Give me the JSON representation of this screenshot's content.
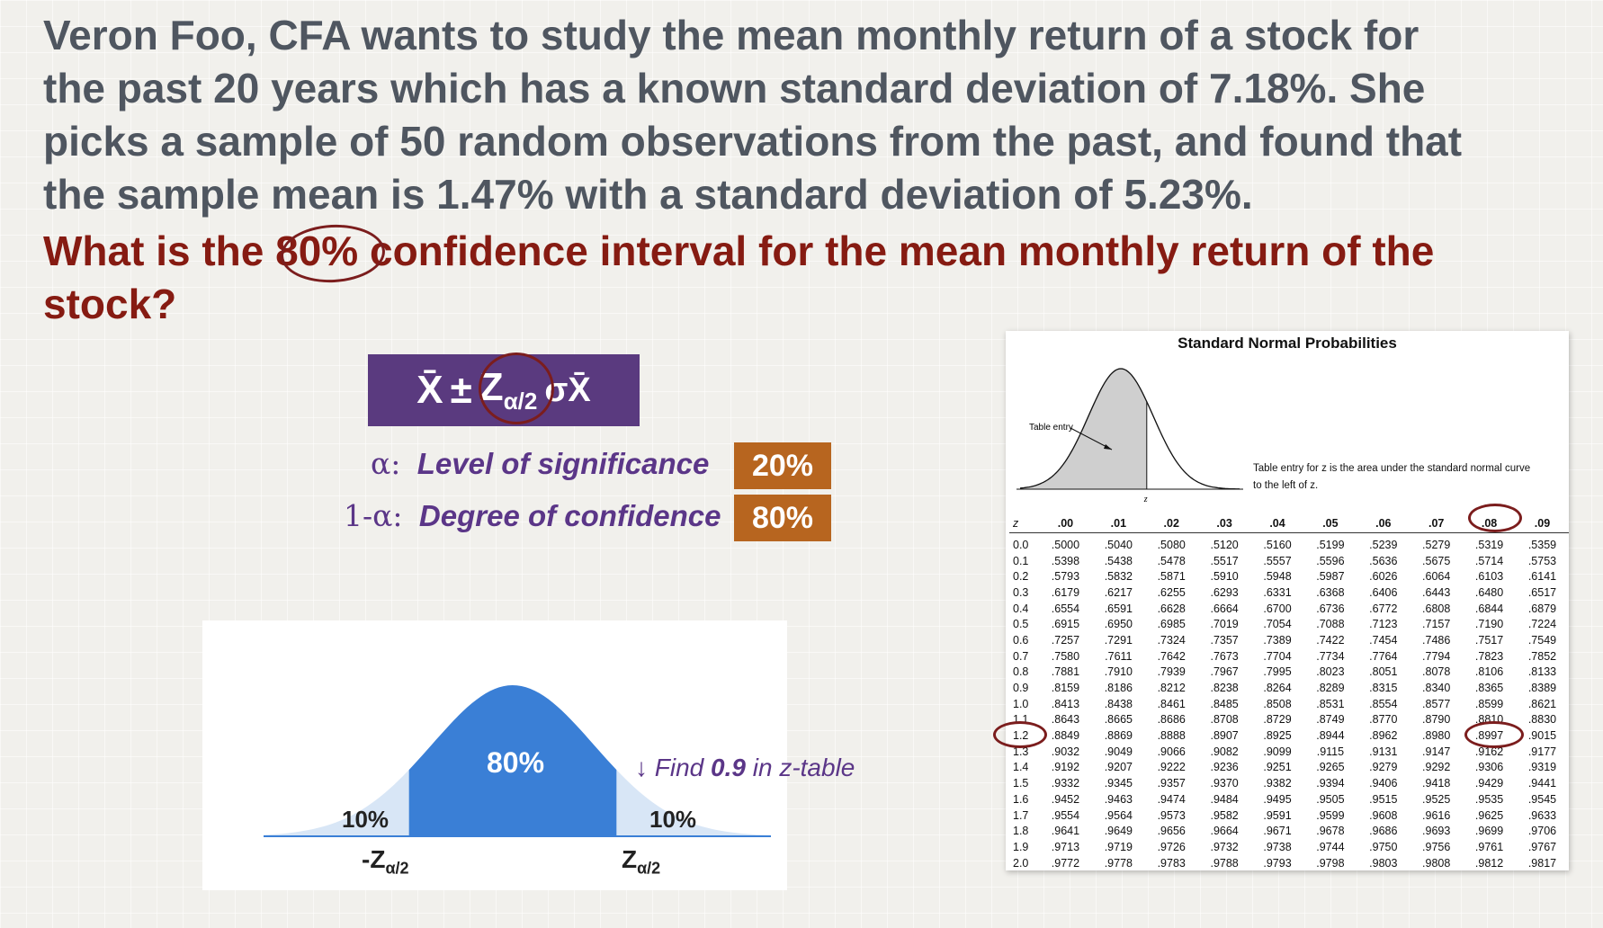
{
  "question": {
    "line1": "Veron Foo, CFA wants to study the mean monthly return of a stock for",
    "line2": "the past 20 years which has a known standard deviation of 7.18%. She",
    "line3": "picks a sample of 50 random observations from the past, and found that",
    "line4": "the sample mean is 1.47% with a standard deviation of 5.23%.",
    "ask1_pre": "What is the ",
    "ask1_pct": "80%",
    "ask1_post": " confidence interval for the mean monthly return of the",
    "ask2": "stock?"
  },
  "formula": {
    "xbar": "X̄",
    "pm": "±",
    "z": "Z",
    "zsub": "α/2",
    "sigma": "σX̄"
  },
  "definitions": [
    {
      "symbol": "α:",
      "text": "Level of significance",
      "value": "20%"
    },
    {
      "symbol": "1-α:",
      "text": "Degree of confidence",
      "value": "80%"
    }
  ],
  "curve": {
    "center_label": "80%",
    "left_tail": "10%",
    "right_tail": "10%",
    "left_z": "-Z",
    "right_z": "Z",
    "zsub": "α/2",
    "center_fraction": 0.8,
    "tail_fraction": 0.1
  },
  "find_note": {
    "prefix": "↓ Find ",
    "value": "0.9",
    "suffix": " in z-table"
  },
  "colors": {
    "question": "#4f5660",
    "ask": "#861b12",
    "purple": "#5a3a7f",
    "orange": "#b7651f",
    "curve_blue": "#3a7fd6",
    "circle": "#7b1d1d"
  },
  "ztable": {
    "title": "Standard Normal Probabilities",
    "table_entry_label": "Table entry",
    "z_axis_label": "z",
    "desc_line1": "Table entry for z is the area under the standard normal curve",
    "desc_line2": "to the left of z.",
    "headers": [
      "z",
      ".00",
      ".01",
      ".02",
      ".03",
      ".04",
      ".05",
      ".06",
      ".07",
      ".08",
      ".09"
    ],
    "rows": [
      [
        "0.0",
        ".5000",
        ".5040",
        ".5080",
        ".5120",
        ".5160",
        ".5199",
        ".5239",
        ".5279",
        ".5319",
        ".5359"
      ],
      [
        "0.1",
        ".5398",
        ".5438",
        ".5478",
        ".5517",
        ".5557",
        ".5596",
        ".5636",
        ".5675",
        ".5714",
        ".5753"
      ],
      [
        "0.2",
        ".5793",
        ".5832",
        ".5871",
        ".5910",
        ".5948",
        ".5987",
        ".6026",
        ".6064",
        ".6103",
        ".6141"
      ],
      [
        "0.3",
        ".6179",
        ".6217",
        ".6255",
        ".6293",
        ".6331",
        ".6368",
        ".6406",
        ".6443",
        ".6480",
        ".6517"
      ],
      [
        "0.4",
        ".6554",
        ".6591",
        ".6628",
        ".6664",
        ".6700",
        ".6736",
        ".6772",
        ".6808",
        ".6844",
        ".6879"
      ],
      [
        "0.5",
        ".6915",
        ".6950",
        ".6985",
        ".7019",
        ".7054",
        ".7088",
        ".7123",
        ".7157",
        ".7190",
        ".7224"
      ],
      [
        "0.6",
        ".7257",
        ".7291",
        ".7324",
        ".7357",
        ".7389",
        ".7422",
        ".7454",
        ".7486",
        ".7517",
        ".7549"
      ],
      [
        "0.7",
        ".7580",
        ".7611",
        ".7642",
        ".7673",
        ".7704",
        ".7734",
        ".7764",
        ".7794",
        ".7823",
        ".7852"
      ],
      [
        "0.8",
        ".7881",
        ".7910",
        ".7939",
        ".7967",
        ".7995",
        ".8023",
        ".8051",
        ".8078",
        ".8106",
        ".8133"
      ],
      [
        "0.9",
        ".8159",
        ".8186",
        ".8212",
        ".8238",
        ".8264",
        ".8289",
        ".8315",
        ".8340",
        ".8365",
        ".8389"
      ],
      [
        "1.0",
        ".8413",
        ".8438",
        ".8461",
        ".8485",
        ".8508",
        ".8531",
        ".8554",
        ".8577",
        ".8599",
        ".8621"
      ],
      [
        "1.1",
        ".8643",
        ".8665",
        ".8686",
        ".8708",
        ".8729",
        ".8749",
        ".8770",
        ".8790",
        ".8810",
        ".8830"
      ],
      [
        "1.2",
        ".8849",
        ".8869",
        ".8888",
        ".8907",
        ".8925",
        ".8944",
        ".8962",
        ".8980",
        ".8997",
        ".9015"
      ],
      [
        "1.3",
        ".9032",
        ".9049",
        ".9066",
        ".9082",
        ".9099",
        ".9115",
        ".9131",
        ".9147",
        ".9162",
        ".9177"
      ],
      [
        "1.4",
        ".9192",
        ".9207",
        ".9222",
        ".9236",
        ".9251",
        ".9265",
        ".9279",
        ".9292",
        ".9306",
        ".9319"
      ],
      [
        "1.5",
        ".9332",
        ".9345",
        ".9357",
        ".9370",
        ".9382",
        ".9394",
        ".9406",
        ".9418",
        ".9429",
        ".9441"
      ],
      [
        "1.6",
        ".9452",
        ".9463",
        ".9474",
        ".9484",
        ".9495",
        ".9505",
        ".9515",
        ".9525",
        ".9535",
        ".9545"
      ],
      [
        "1.7",
        ".9554",
        ".9564",
        ".9573",
        ".9582",
        ".9591",
        ".9599",
        ".9608",
        ".9616",
        ".9625",
        ".9633"
      ],
      [
        "1.8",
        ".9641",
        ".9649",
        ".9656",
        ".9664",
        ".9671",
        ".9678",
        ".9686",
        ".9693",
        ".9699",
        ".9706"
      ],
      [
        "1.9",
        ".9713",
        ".9719",
        ".9726",
        ".9732",
        ".9738",
        ".9744",
        ".9750",
        ".9756",
        ".9761",
        ".9767"
      ],
      [
        "2.0",
        ".9772",
        ".9778",
        ".9783",
        ".9788",
        ".9793",
        ".9798",
        ".9803",
        ".9808",
        ".9812",
        ".9817"
      ]
    ]
  }
}
